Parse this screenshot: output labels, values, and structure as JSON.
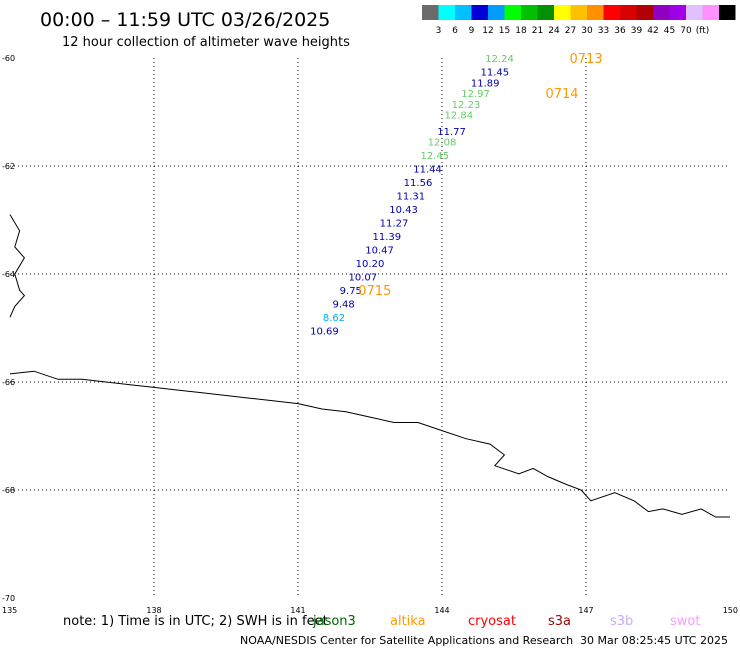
{
  "header": {
    "title": "00:00 – 11:59 UTC 03/26/2025",
    "subtitle": "12 hour collection of altimeter wave heights"
  },
  "colorbar": {
    "colors": [
      "#6b6b6b",
      "#00ffff",
      "#00c0ff",
      "#0000d8",
      "#009dff",
      "#00ff00",
      "#00c000",
      "#009000",
      "#ffff00",
      "#ffc000",
      "#ff9000",
      "#ff0000",
      "#d80000",
      "#b00000",
      "#9000c0",
      "#a000e8",
      "#e0c0ff",
      "#ff90ff",
      "#000000"
    ],
    "labels": [
      "3",
      "6",
      "9",
      "12",
      "15",
      "18",
      "21",
      "24",
      "27",
      "30",
      "33",
      "36",
      "39",
      "42",
      "45",
      "70",
      "(ft)"
    ]
  },
  "map": {
    "lon_range": [
      135,
      150
    ],
    "lat_range": [
      -60,
      -70
    ],
    "lon_ticks": [
      "135",
      "138",
      "141",
      "144",
      "147",
      "150"
    ],
    "lat_ticks": [
      "-60",
      "-62",
      "-64",
      "-66",
      "-68",
      "-70"
    ],
    "grid_style": "dotted",
    "coastline": [
      [
        135,
        -65.85
      ],
      [
        135.5,
        -65.8
      ],
      [
        136,
        -65.95
      ],
      [
        136.5,
        -65.95
      ],
      [
        137,
        -66.0
      ],
      [
        137.5,
        -66.05
      ],
      [
        138,
        -66.1
      ],
      [
        138.5,
        -66.15
      ],
      [
        139,
        -66.2
      ],
      [
        139.5,
        -66.25
      ],
      [
        140,
        -66.3
      ],
      [
        140.5,
        -66.35
      ],
      [
        141,
        -66.4
      ],
      [
        141.5,
        -66.5
      ],
      [
        142,
        -66.55
      ],
      [
        142.5,
        -66.65
      ],
      [
        143,
        -66.75
      ],
      [
        143.5,
        -66.75
      ],
      [
        144,
        -66.9
      ],
      [
        144.5,
        -67.05
      ],
      [
        145,
        -67.15
      ],
      [
        145.3,
        -67.35
      ],
      [
        145.1,
        -67.55
      ],
      [
        145.6,
        -67.7
      ],
      [
        145.9,
        -67.6
      ],
      [
        146.2,
        -67.75
      ],
      [
        146.6,
        -67.9
      ],
      [
        146.9,
        -68.0
      ],
      [
        147.1,
        -68.2
      ],
      [
        147.6,
        -68.05
      ],
      [
        148,
        -68.2
      ],
      [
        148.3,
        -68.4
      ],
      [
        148.6,
        -68.35
      ],
      [
        149,
        -68.45
      ],
      [
        149.4,
        -68.35
      ],
      [
        149.7,
        -68.5
      ],
      [
        150,
        -68.5
      ]
    ],
    "land_edge": [
      [
        135,
        -62.9
      ],
      [
        135.2,
        -63.2
      ],
      [
        135.1,
        -63.5
      ],
      [
        135.3,
        -63.7
      ],
      [
        135.1,
        -64.0
      ],
      [
        135.2,
        -64.3
      ],
      [
        135.3,
        -64.4
      ],
      [
        135.1,
        -64.6
      ],
      [
        135.0,
        -64.8
      ]
    ]
  },
  "tracks": [
    {
      "label": "0713",
      "lon": 147.0,
      "lat": -60.0
    },
    {
      "label": "0714",
      "lon": 146.5,
      "lat": -60.65
    },
    {
      "label": "0715",
      "lon": 142.6,
      "lat": -64.3
    }
  ],
  "swh_points": [
    {
      "value": "12.24",
      "lon": 145.2,
      "lat": -60.0,
      "color": "#66cc66"
    },
    {
      "value": "11.45",
      "lon": 145.1,
      "lat": -60.25,
      "color": "#0000aa"
    },
    {
      "value": "11.89",
      "lon": 144.9,
      "lat": -60.45,
      "color": "#0000aa"
    },
    {
      "value": "12.97",
      "lon": 144.7,
      "lat": -60.65,
      "color": "#66cc66"
    },
    {
      "value": "12.23",
      "lon": 144.5,
      "lat": -60.85,
      "color": "#66cc66"
    },
    {
      "value": "12.84",
      "lon": 144.35,
      "lat": -61.05,
      "color": "#66cc66"
    },
    {
      "value": "11.77",
      "lon": 144.2,
      "lat": -61.35,
      "color": "#0000aa"
    },
    {
      "value": "12.08",
      "lon": 144.0,
      "lat": -61.55,
      "color": "#66cc66"
    },
    {
      "value": "12.45",
      "lon": 143.85,
      "lat": -61.8,
      "color": "#66cc66"
    },
    {
      "value": "11.44",
      "lon": 143.7,
      "lat": -62.05,
      "color": "#0000aa"
    },
    {
      "value": "11.56",
      "lon": 143.5,
      "lat": -62.3,
      "color": "#0000aa"
    },
    {
      "value": "11.31",
      "lon": 143.35,
      "lat": -62.55,
      "color": "#0000aa"
    },
    {
      "value": "10.43",
      "lon": 143.2,
      "lat": -62.8,
      "color": "#0000aa"
    },
    {
      "value": "11.27",
      "lon": 143.0,
      "lat": -63.05,
      "color": "#0000aa"
    },
    {
      "value": "11.39",
      "lon": 142.85,
      "lat": -63.3,
      "color": "#0000aa"
    },
    {
      "value": "10.47",
      "lon": 142.7,
      "lat": -63.55,
      "color": "#0000aa"
    },
    {
      "value": "10.20",
      "lon": 142.5,
      "lat": -63.8,
      "color": "#0000aa"
    },
    {
      "value": "10.07",
      "lon": 142.35,
      "lat": -64.05,
      "color": "#0000aa"
    },
    {
      "value": "9.75",
      "lon": 142.1,
      "lat": -64.3,
      "color": "#0000aa"
    },
    {
      "value": "9.48",
      "lon": 141.95,
      "lat": -64.55,
      "color": "#0000aa"
    },
    {
      "value": "8.62",
      "lon": 141.75,
      "lat": -64.8,
      "color": "#00aaff"
    },
    {
      "value": "10.69",
      "lon": 141.55,
      "lat": -65.05,
      "color": "#0000aa"
    }
  ],
  "footer": {
    "note": "note:  1) Time is in UTC; 2) SWH is in feet",
    "satellites": [
      {
        "name": "jason3",
        "color": "#006600"
      },
      {
        "name": "altika",
        "color": "#ff9900"
      },
      {
        "name": "cryosat",
        "color": "#ff0000"
      },
      {
        "name": "s3a",
        "color": "#990000"
      },
      {
        "name": "s3b",
        "color": "#ccaaff"
      },
      {
        "name": "swot",
        "color": "#ff99ff"
      }
    ],
    "credit": "NOAA/NESDIS Center for Satellite Applications and Research",
    "timestamp": "30 Mar 08:25:45 UTC 2025"
  }
}
